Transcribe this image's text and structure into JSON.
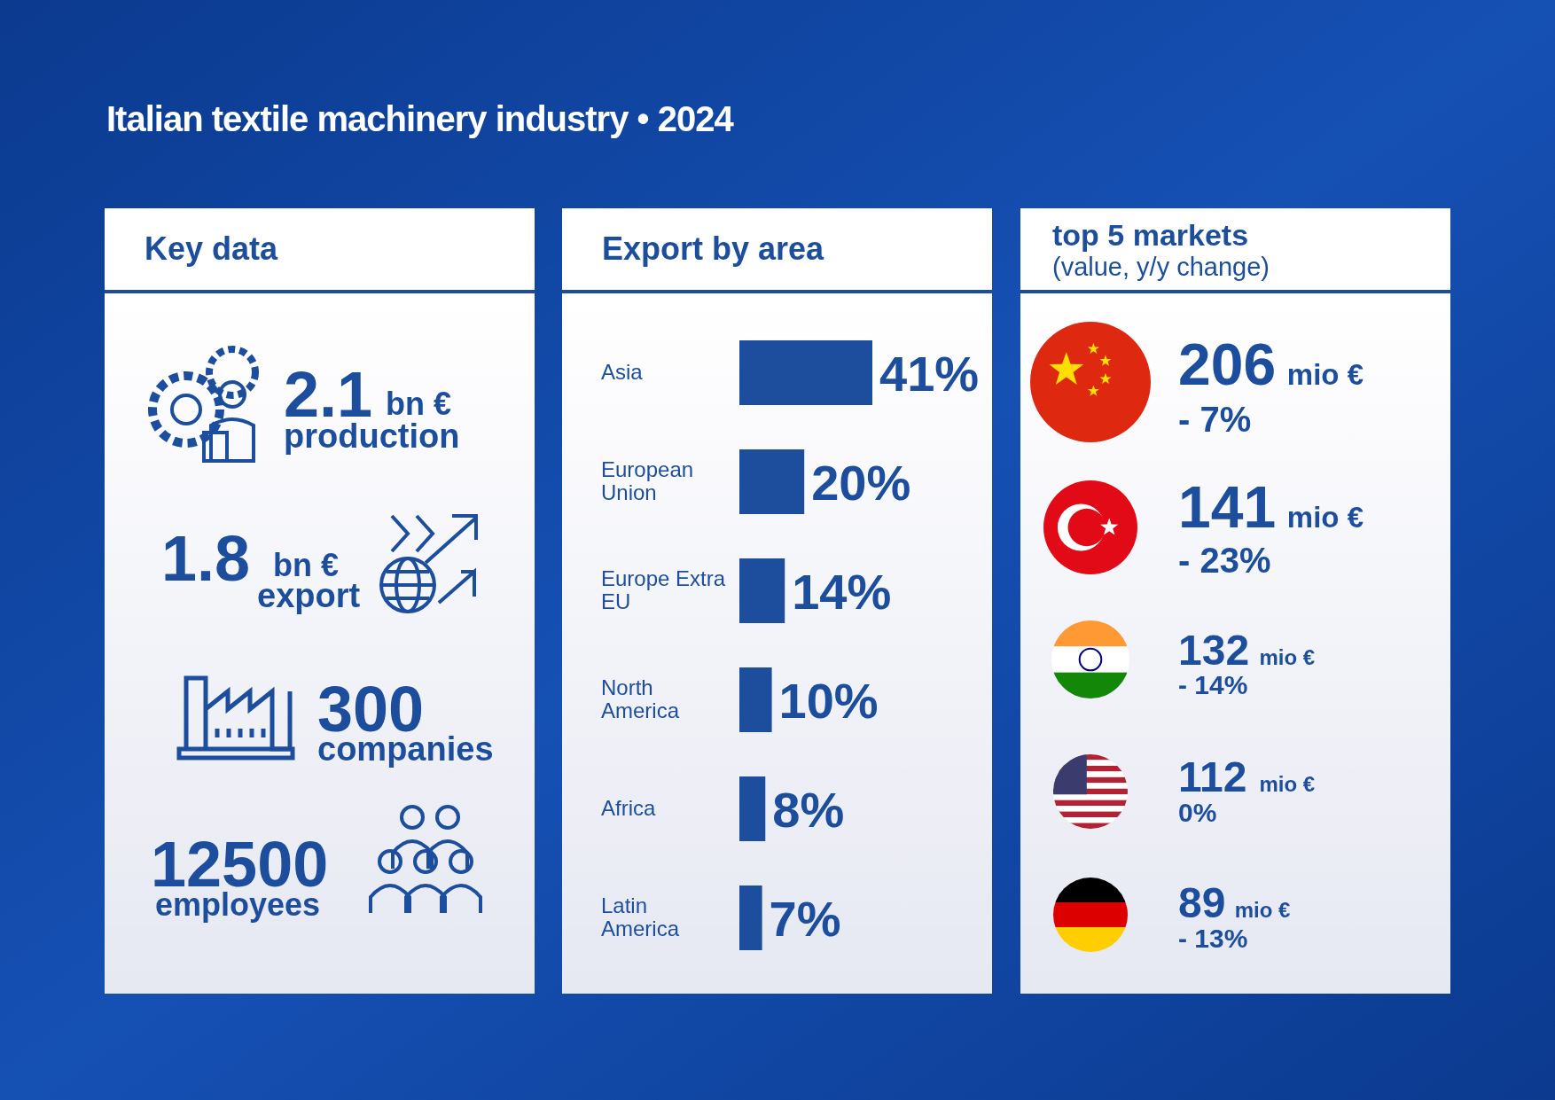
{
  "chart_data": [
    {
      "type": "other",
      "title": "Key data",
      "annotations": [
        "Italian textile machinery industry • 2024",
        "2.1",
        "bn €",
        "production",
        "1.8",
        "bn €",
        "export",
        "300",
        "companies",
        "12500",
        "employees"
      ]
    },
    {
      "type": "bar",
      "orientation": "horizontal",
      "title": "Export by area",
      "categories": [
        "Asia",
        "European Union",
        "Europe Extra EU",
        "North America",
        "Africa",
        "Latin America"
      ],
      "values": [
        41,
        20,
        14,
        10,
        8,
        7
      ],
      "value_labels": [
        "41%",
        "20%",
        "14%",
        "10%",
        "8%",
        "7%"
      ],
      "color": "#1c4e9d"
    },
    {
      "type": "other",
      "title": "top 5 markets",
      "subtitle": "(value, y/y change)",
      "annotations": [
        "206",
        "mio €",
        "- 7%",
        "141",
        "mio €",
        "- 23%",
        "132",
        "mio €",
        "- 14%",
        "112",
        "mio €",
        "0%",
        "89",
        "mio €",
        "- 13%"
      ]
    }
  ]
}
